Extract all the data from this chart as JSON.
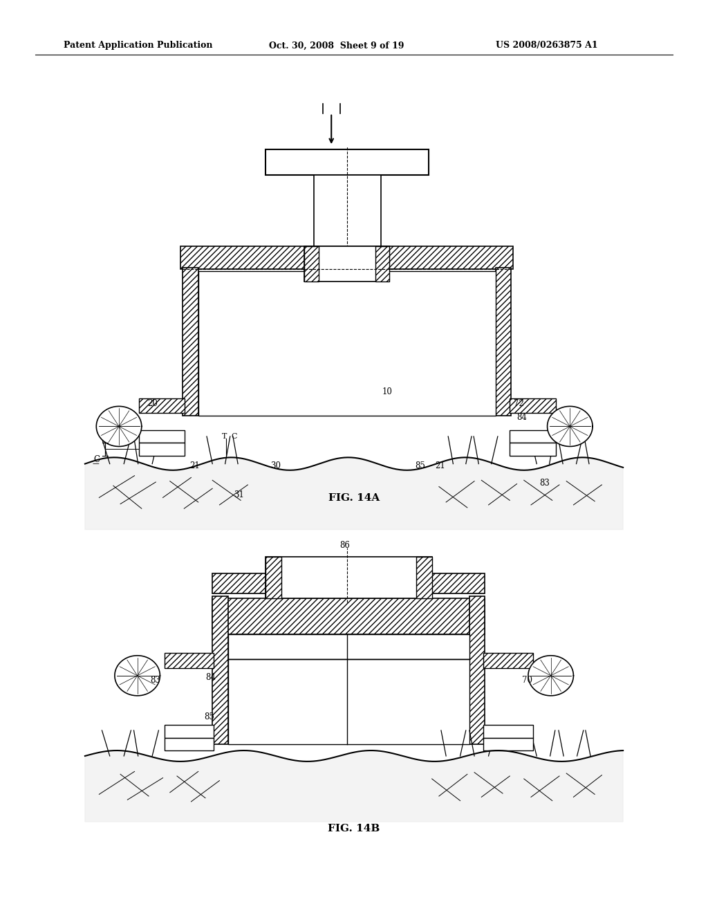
{
  "title_left": "Patent Application Publication",
  "title_mid": "Oct. 30, 2008  Sheet 9 of 19",
  "title_right": "US 2008/0263875 A1",
  "fig_label_a": "FIG. 14A",
  "fig_label_b": "FIG. 14B",
  "bg_color": "#ffffff",
  "line_color": "#000000"
}
